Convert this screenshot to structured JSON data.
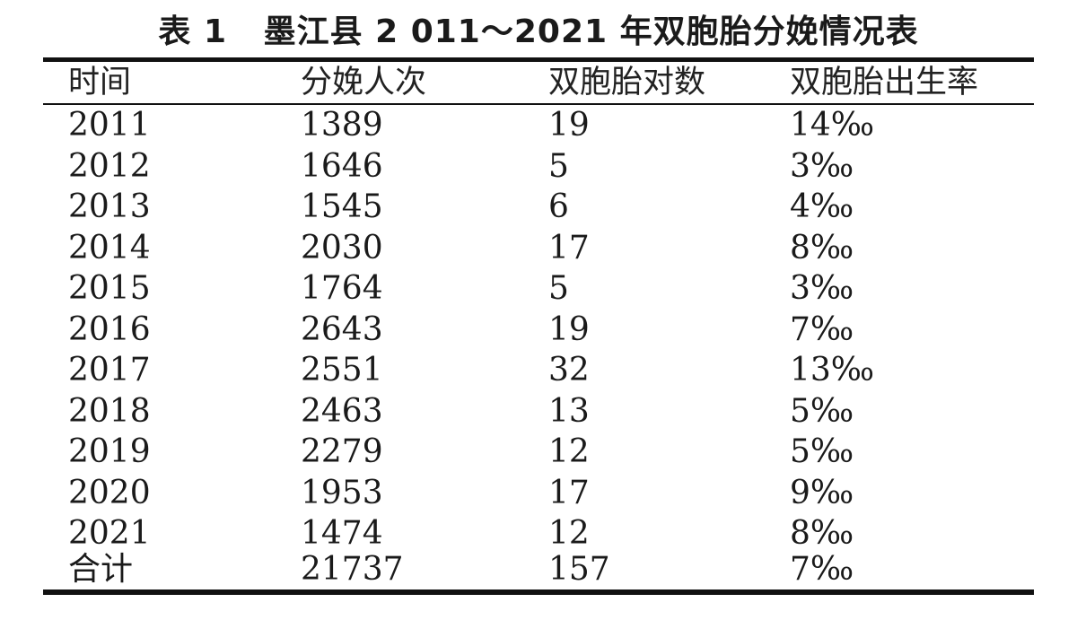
{
  "title": "表 1   墨江县 2 011～2021 年双胞胎分娩情况表",
  "table": {
    "headers": [
      "时间",
      "分娩人次",
      "双胞胎对数",
      "双胞胎出生率"
    ],
    "rows": [
      [
        "2011",
        "1389",
        "19",
        "14‰"
      ],
      [
        "2012",
        "1646",
        "5",
        "3‰"
      ],
      [
        "2013",
        "1545",
        "6",
        "4‰"
      ],
      [
        "2014",
        "2030",
        "17",
        "8‰"
      ],
      [
        "2015",
        "1764",
        "5",
        "3‰"
      ],
      [
        "2016",
        "2643",
        "19",
        "7‰"
      ],
      [
        "2017",
        "2551",
        "32",
        "13‰"
      ],
      [
        "2018",
        "2463",
        "13",
        "5‰"
      ],
      [
        "2019",
        "2279",
        "12",
        "5‰"
      ],
      [
        "2020",
        "1953",
        "17",
        "9‰"
      ],
      [
        "2021",
        "1474",
        "12",
        "8‰"
      ],
      [
        "合计",
        "21737",
        "157",
        "7‰"
      ]
    ]
  }
}
